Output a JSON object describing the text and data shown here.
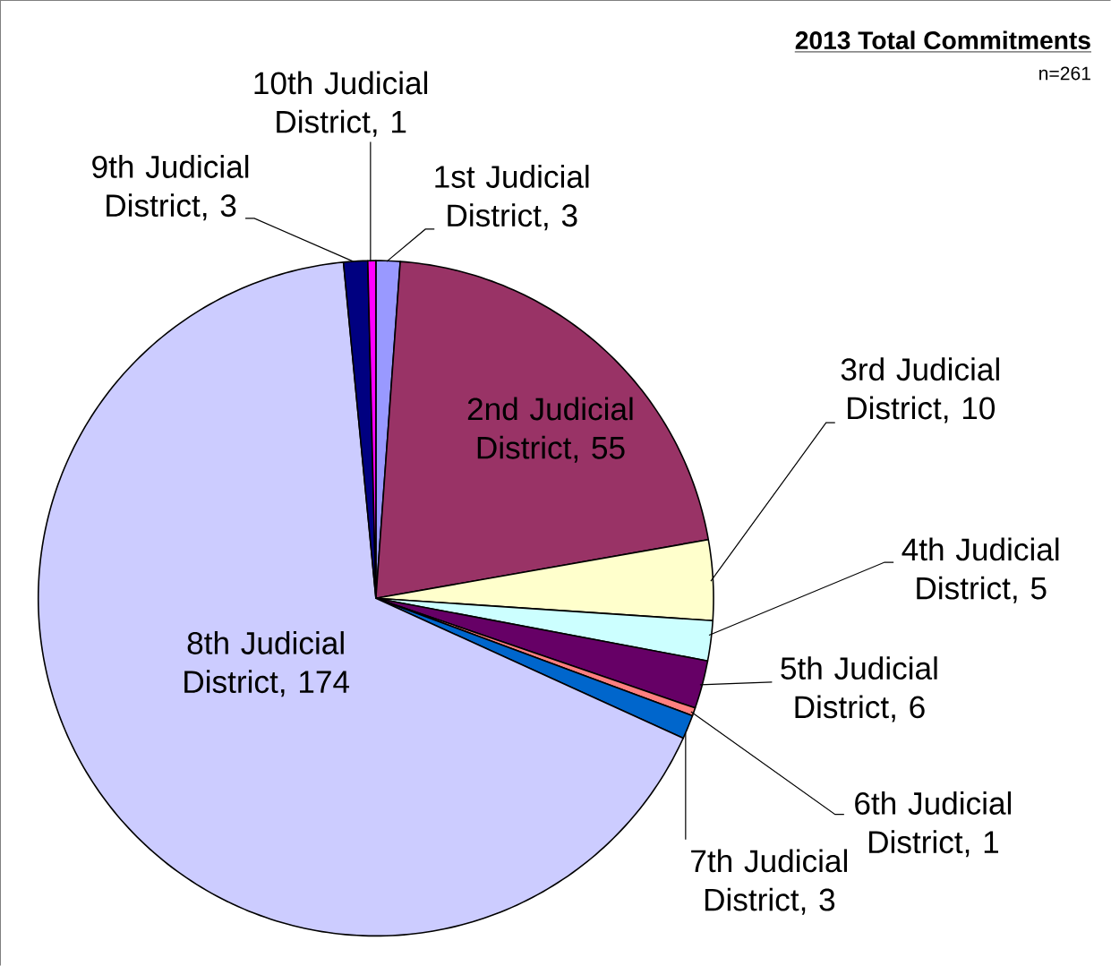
{
  "chart_data": {
    "type": "pie",
    "title": "2013 Total Commitments",
    "subtitle": "n=261",
    "categories": [
      "1st Judicial District, 3",
      "2nd Judicial District, 55",
      "3rd Judicial District, 10",
      "4th Judicial District, 5",
      "5th Judicial District, 6",
      "6th Judicial District, 1",
      "7th Judicial District, 3",
      "8th Judicial District, 174",
      "9th Judicial District, 3",
      "10th Judicial District, 1"
    ],
    "values": [
      3,
      55,
      10,
      5,
      6,
      1,
      3,
      174,
      3,
      1
    ],
    "colors": [
      "#9999ff",
      "#993366",
      "#ffffcc",
      "#ccffff",
      "#660066",
      "#ff8080",
      "#0066cc",
      "#ccccff",
      "#000080",
      "#ff00ff"
    ]
  }
}
